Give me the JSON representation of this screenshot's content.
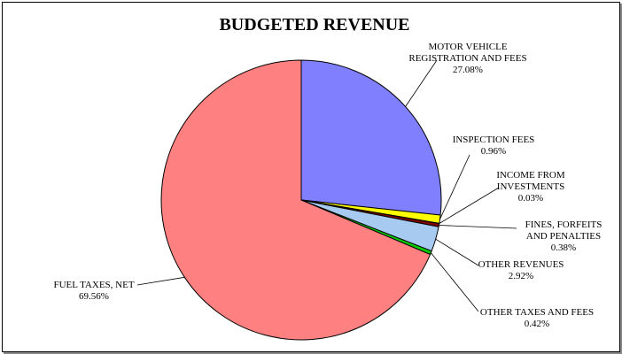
{
  "chart_data": {
    "type": "pie",
    "title": "BUDGETED REVENUE",
    "slices": [
      {
        "name": "MOTOR VEHICLE REGISTRATION AND FEES",
        "label_lines": [
          "MOTOR VEHICLE",
          "REGISTRATION AND FEES"
        ],
        "value": 27.08,
        "value_label": "27.08%",
        "color": "#8080ff"
      },
      {
        "name": "INSPECTION FEES",
        "label_lines": [
          "INSPECTION FEES"
        ],
        "value": 0.96,
        "value_label": "0.96%",
        "color": "#ffff00"
      },
      {
        "name": "INCOME FROM INVESTMENTS",
        "label_lines": [
          "INCOME FROM",
          "INVESTMENTS"
        ],
        "value": 0.03,
        "value_label": "0.03%",
        "color": "#660066"
      },
      {
        "name": "FINES, FORFEITS AND PENALTIES",
        "label_lines": [
          "FINES, FORFEITS",
          "AND PENALTIES"
        ],
        "value": 0.38,
        "value_label": "0.38%",
        "color": "#800000"
      },
      {
        "name": "OTHER REVENUES",
        "label_lines": [
          "OTHER REVENUES"
        ],
        "value": 2.92,
        "value_label": "2.92%",
        "color": "#a6caf0"
      },
      {
        "name": "OTHER TAXES AND FEES",
        "label_lines": [
          "OTHER TAXES AND FEES"
        ],
        "value": 0.42,
        "value_label": "0.42%",
        "color": "#00cc00"
      },
      {
        "name": "FUEL TAXES, NET",
        "label_lines": [
          "FUEL TAXES, NET"
        ],
        "value": 69.56,
        "value_label": "69.56%",
        "color": "#ff8080"
      }
    ],
    "start_direction": "12 o'clock",
    "direction": "clockwise",
    "legend": "none"
  }
}
